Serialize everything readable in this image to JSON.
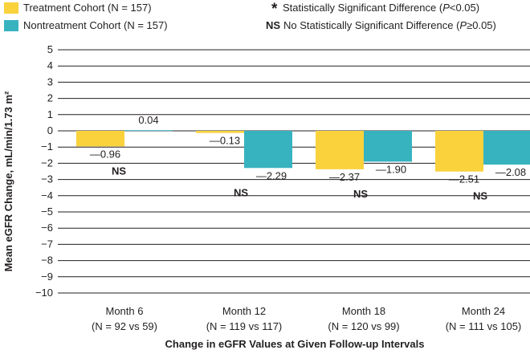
{
  "legend": {
    "treatment": {
      "label": "Treatment Cohort (N = 157)",
      "color": "#f9d23c"
    },
    "nontreatment": {
      "label": "Nontreatment Cohort (N = 157)",
      "color": "#37b3c0"
    },
    "significant": {
      "symbol": "*",
      "text_before": "Statistically Significant Difference (",
      "p_var": "P",
      "text_after": "<0.05)"
    },
    "not_significant": {
      "symbol": "NS",
      "text_before": "No Statistically Significant Difference (",
      "p_var": "P",
      "text_after": "≥0.05)"
    }
  },
  "chart_data": {
    "type": "bar",
    "ylabel": "Mean eGFR Change, mL/min/1.73 m²",
    "xlabel": "Change in eGFR Values at Given Follow-up Intervals",
    "ylim": [
      -10,
      5
    ],
    "yticks": [
      "5",
      "4",
      "3",
      "2",
      "1",
      "0",
      "−1",
      "−2",
      "−3",
      "−4",
      "−5",
      "−6",
      "−7",
      "−8",
      "−9",
      "−10"
    ],
    "ytick_values": [
      5,
      4,
      3,
      2,
      1,
      0,
      -1,
      -2,
      -3,
      -4,
      -5,
      -6,
      -7,
      -8,
      -9,
      -10
    ],
    "categories": [
      "Month 6",
      "Month 12",
      "Month 18",
      "Month 24"
    ],
    "category_sublabels": [
      "(N = 92 vs 59)",
      "(N = 119 vs 117)",
      "(N = 120 vs 99)",
      "(N = 111 vs 105)"
    ],
    "series": [
      {
        "name": "Treatment Cohort",
        "color": "#f9d23c",
        "values": [
          -0.96,
          -0.13,
          -2.37,
          -2.51
        ],
        "labels": [
          "—0.96",
          "—0.13",
          "—2.37",
          "—2.51"
        ]
      },
      {
        "name": "Nontreatment Cohort",
        "color": "#37b3c0",
        "values": [
          0.04,
          -2.29,
          -1.9,
          -2.08
        ],
        "labels": [
          "0.04",
          "—2.29",
          "—1.90",
          "—2.08"
        ]
      }
    ],
    "significance": [
      "NS",
      "NS",
      "NS",
      "NS"
    ]
  }
}
